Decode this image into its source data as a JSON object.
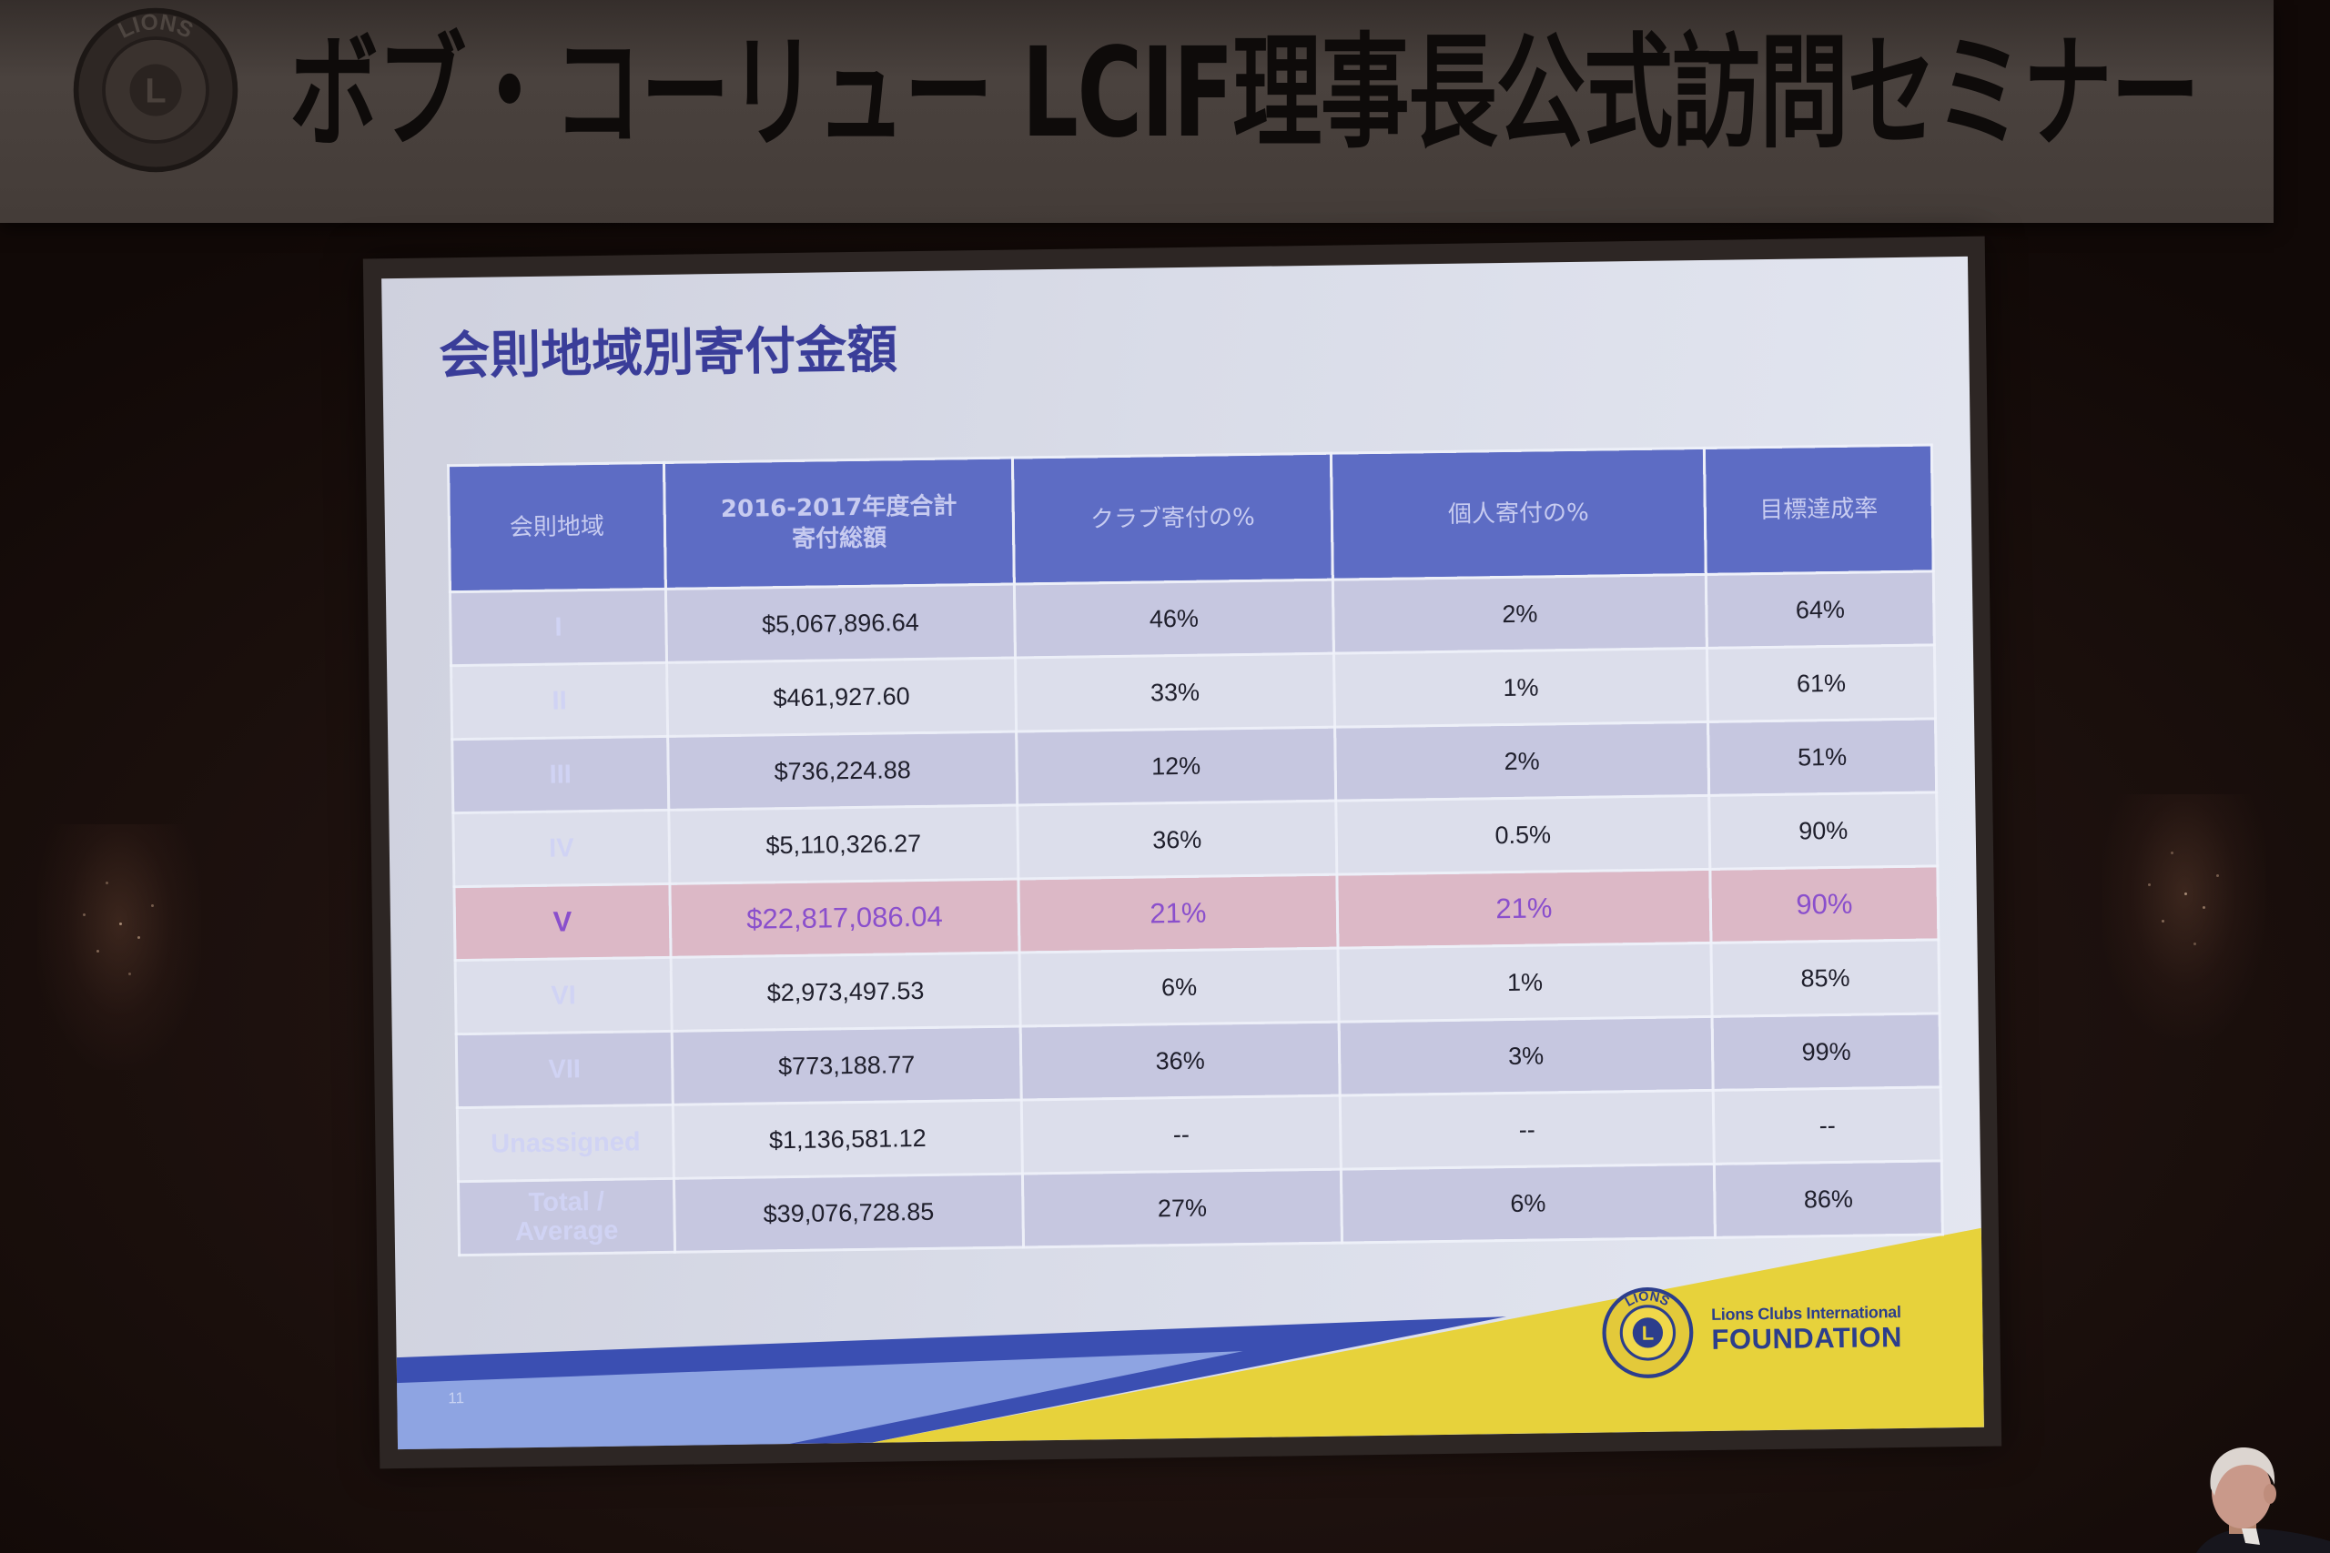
{
  "banner": {
    "title": "ボブ・コーリュー LCIF理事長公式訪問セミナー"
  },
  "emblem": {
    "ring_text": "LIONS",
    "center_letter": "L"
  },
  "slide": {
    "title": "会則地域別寄付金額",
    "page_number": "11",
    "logo": {
      "line1": "Lions Clubs International",
      "line2": "FOUNDATION"
    }
  },
  "table": {
    "headers": {
      "region": "会則地域",
      "total_line1": "2016-2017年度合計",
      "total_line2": "寄付総額",
      "club_pct": "クラブ寄付の%",
      "individual_pct": "個人寄付の%",
      "goal_rate": "目標達成率"
    },
    "rows": [
      {
        "region": "I",
        "total": "$5,067,896.64",
        "club_pct": "46%",
        "individual_pct": "2%",
        "goal_rate": "64%"
      },
      {
        "region": "II",
        "total": "$461,927.60",
        "club_pct": "33%",
        "individual_pct": "1%",
        "goal_rate": "61%"
      },
      {
        "region": "III",
        "total": "$736,224.88",
        "club_pct": "12%",
        "individual_pct": "2%",
        "goal_rate": "51%"
      },
      {
        "region": "IV",
        "total": "$5,110,326.27",
        "club_pct": "36%",
        "individual_pct": "0.5%",
        "goal_rate": "90%"
      },
      {
        "region": "V",
        "total": "$22,817,086.04",
        "club_pct": "21%",
        "individual_pct": "21%",
        "goal_rate": "90%",
        "highlighted": true
      },
      {
        "region": "VI",
        "total": "$2,973,497.53",
        "club_pct": "6%",
        "individual_pct": "1%",
        "goal_rate": "85%"
      },
      {
        "region": "VII",
        "total": "$773,188.77",
        "club_pct": "36%",
        "individual_pct": "3%",
        "goal_rate": "99%"
      },
      {
        "region": "Unassigned",
        "total": "$1,136,581.12",
        "club_pct": "--",
        "individual_pct": "--",
        "goal_rate": "--"
      },
      {
        "region": "Total / Average",
        "total": "$39,076,728.85",
        "club_pct": "27%",
        "individual_pct": "6%",
        "goal_rate": "86%"
      }
    ]
  },
  "colors": {
    "title": "#3a3d99",
    "header_bg": "#5d6cc4",
    "header_text": "#c7cbf0",
    "region_bg": "#5866c0",
    "region_text": "#d0d3f4",
    "row_band_dark": "#c6c7e0",
    "row_band_light": "#dcdeeb",
    "highlight_bg": "#dcb8c6",
    "highlight_text": "#8a4fcc",
    "footer_blue": "#3b4fb2",
    "footer_light_blue": "#8ea4e2",
    "footer_yellow": "#e7d23b",
    "logo_blue": "#2c3e8c",
    "banner_text": "#0e0b0a"
  }
}
